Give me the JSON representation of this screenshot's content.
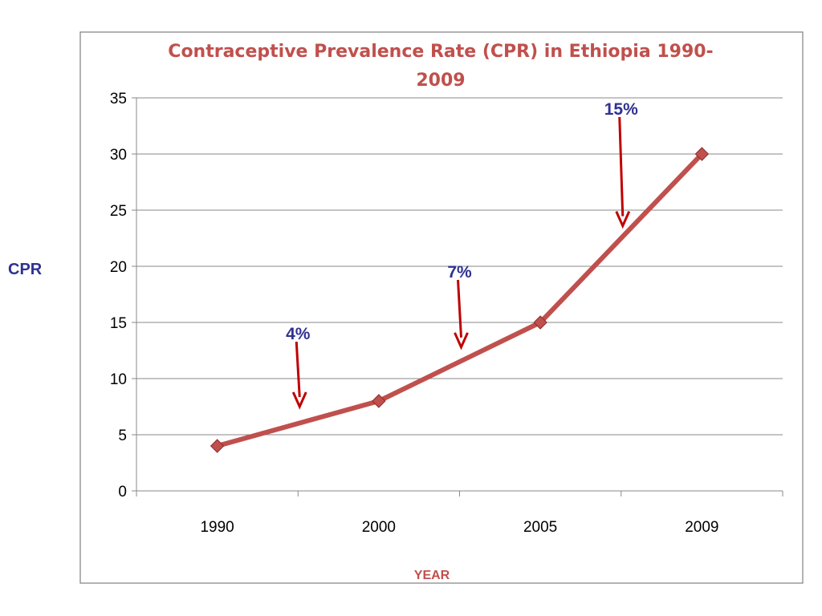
{
  "chart_data": {
    "type": "line",
    "title_lines": [
      "Contraceptive Prevalence  Rate (CPR)  in Ethiopia 1990-",
      "2009"
    ],
    "xlabel": "YEAR",
    "ylabel": "CPR",
    "categories": [
      "1990",
      "2000",
      "2005",
      "2009"
    ],
    "series": [
      {
        "values": [
          4,
          8,
          15,
          30
        ],
        "color": "#c0504d"
      }
    ],
    "ylim": [
      0,
      35
    ],
    "yticks": [
      "0",
      "5",
      "10",
      "15",
      "20",
      "25",
      "30",
      "35"
    ],
    "grid": true,
    "annotations": [
      {
        "text": "4%",
        "x_between": [
          0,
          1
        ],
        "y_text": 14,
        "y_arrow_end": 7.5
      },
      {
        "text": "7%",
        "x_between": [
          1,
          2
        ],
        "y_text": 19.5,
        "y_arrow_end": 12.8
      },
      {
        "text": "15%",
        "x_between": [
          2,
          3
        ],
        "y_text": 34,
        "y_arrow_end": 23.6
      }
    ],
    "annotation_color": "#2f3192",
    "arrow_color": "#c00000",
    "frame_color": "#808080",
    "grid_color": "#888888"
  }
}
